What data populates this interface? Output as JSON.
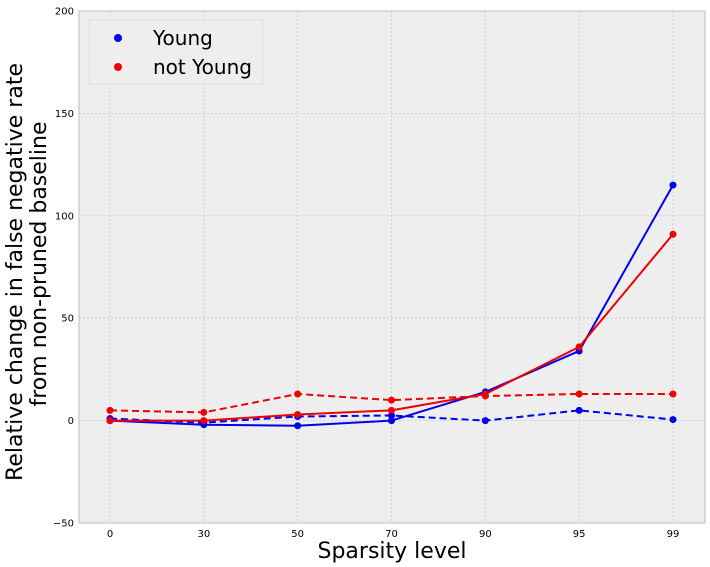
{
  "chart_data": {
    "type": "line",
    "title": "",
    "xlabel": "Sparsity level",
    "ylabel_lines": [
      "Relative change in false negative rate",
      "from non-pruned baseline"
    ],
    "categories": [
      "0",
      "30",
      "50",
      "70",
      "90",
      "95",
      "99"
    ],
    "ylim": [
      -50,
      200
    ],
    "yticks": [
      "−50",
      "0",
      "50",
      "100",
      "150",
      "200"
    ],
    "ytick_values": [
      -50,
      0,
      50,
      100,
      150,
      200
    ],
    "grid": true,
    "legend_position": "top-left",
    "legend": [
      {
        "name": "Young",
        "color": "#0000ee"
      },
      {
        "name": "not Young",
        "color": "#ee0000"
      }
    ],
    "series": [
      {
        "name": "Young",
        "style": "solid",
        "color": "#0000ee",
        "values": [
          0,
          -2,
          -2.5,
          0,
          14,
          34,
          115
        ]
      },
      {
        "name": "Young",
        "style": "dashed",
        "color": "#0000ee",
        "values": [
          1,
          -1,
          2,
          2.5,
          0,
          5,
          0.5
        ]
      },
      {
        "name": "not Young",
        "style": "solid",
        "color": "#ee0000",
        "values": [
          0,
          0,
          3,
          5,
          13,
          36,
          91
        ]
      },
      {
        "name": "not Young",
        "style": "dashed",
        "color": "#ee0000",
        "values": [
          5,
          4,
          13,
          10,
          12,
          13,
          13
        ]
      }
    ]
  }
}
